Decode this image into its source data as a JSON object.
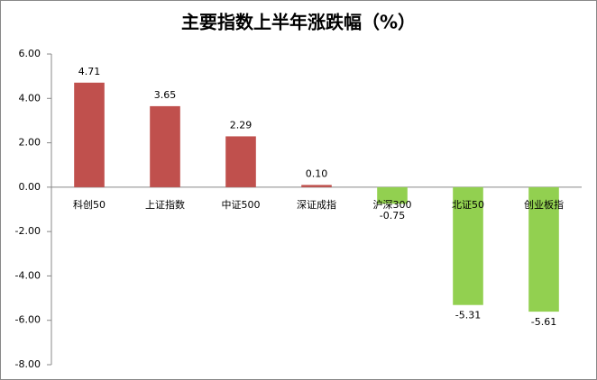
{
  "chart_data": {
    "type": "bar",
    "title": "主要指数上半年涨跌幅（%）",
    "categories": [
      "科创50",
      "上证指数",
      "中证500",
      "深证成指",
      "沪深300",
      "北证50",
      "创业板指"
    ],
    "values": [
      4.71,
      3.65,
      2.29,
      0.1,
      -0.75,
      -5.31,
      -5.61
    ],
    "value_labels": [
      "4.71",
      "3.65",
      "2.29",
      "0.10",
      "-0.75",
      "-5.31",
      "-5.61"
    ],
    "colors": [
      "#c0504d",
      "#c0504d",
      "#c0504d",
      "#c0504d",
      "#92d050",
      "#92d050",
      "#92d050"
    ],
    "ylim": [
      -8,
      6
    ],
    "yticks": [
      {
        "value": 6,
        "label": "6.00"
      },
      {
        "value": 4,
        "label": "4.00"
      },
      {
        "value": 2,
        "label": "2.00"
      },
      {
        "value": 0,
        "label": "0.00"
      },
      {
        "value": -2,
        "label": "-2.00"
      },
      {
        "value": -4,
        "label": "-4.00"
      },
      {
        "value": -6,
        "label": "-6.00"
      },
      {
        "value": -8,
        "label": "-8.00"
      }
    ],
    "grid": false
  }
}
